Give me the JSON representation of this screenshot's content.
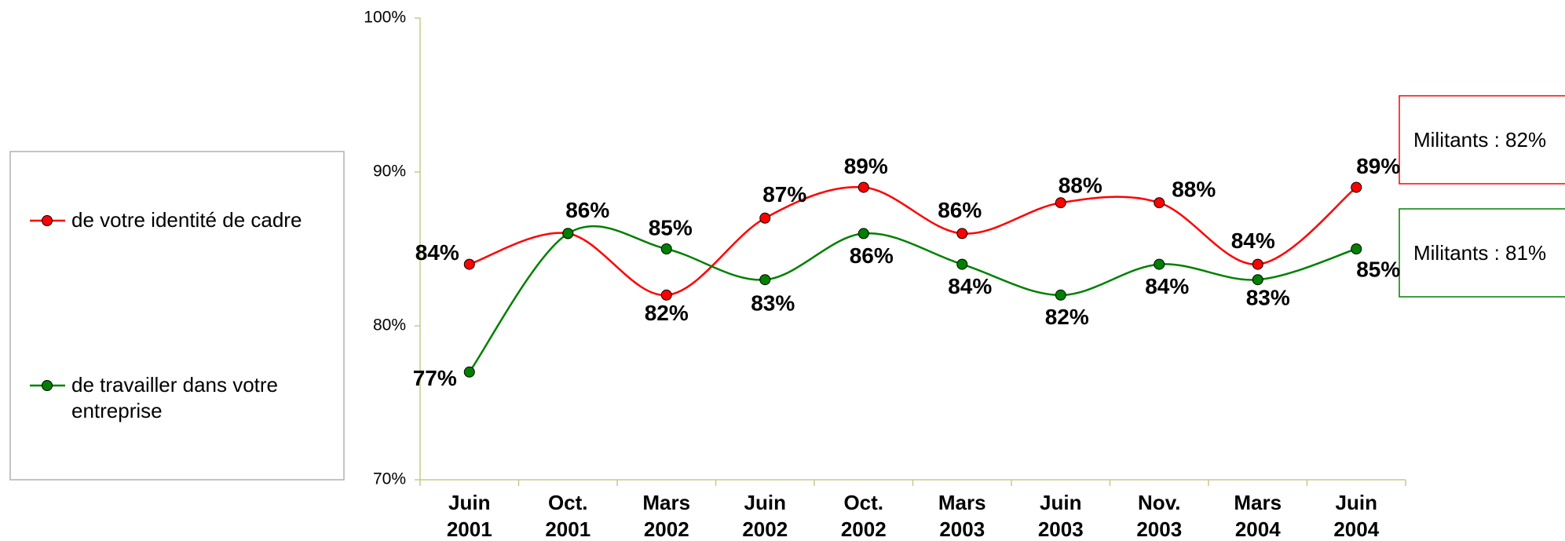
{
  "chart_data": {
    "type": "line",
    "categories": [
      "Juin 2001",
      "Oct. 2001",
      "Mars 2002",
      "Juin 2002",
      "Oct. 2002",
      "Mars 2003",
      "Juin 2003",
      "Nov. 2003",
      "Mars 2004",
      "Juin 2004"
    ],
    "series": [
      {
        "name": "de votre identité de cadre",
        "color": "#ff0000",
        "values": [
          84,
          86,
          82,
          87,
          89,
          86,
          88,
          88,
          84,
          89
        ],
        "value_labels": [
          "84%",
          null,
          "82%",
          "87%",
          "89%",
          "86%",
          "88%",
          "88%",
          "84%",
          "89%"
        ]
      },
      {
        "name": "de travailler dans votre entreprise",
        "color": "#008000",
        "values": [
          77,
          86,
          85,
          83,
          86,
          84,
          82,
          84,
          83,
          85
        ],
        "value_labels": [
          "77%",
          "86%",
          "85%",
          "83%",
          "86%",
          "84%",
          "82%",
          "84%",
          "83%",
          "85%"
        ]
      }
    ],
    "ylim": [
      70,
      100
    ],
    "yticks": [
      {
        "value": 70,
        "label": "70%"
      },
      {
        "value": 80,
        "label": "80%"
      },
      {
        "value": 90,
        "label": "90%"
      },
      {
        "value": 100,
        "label": "100%"
      }
    ],
    "grid": false,
    "legend": "left",
    "annotations": [
      "Militants : 82%",
      "Militants : 81%"
    ]
  }
}
